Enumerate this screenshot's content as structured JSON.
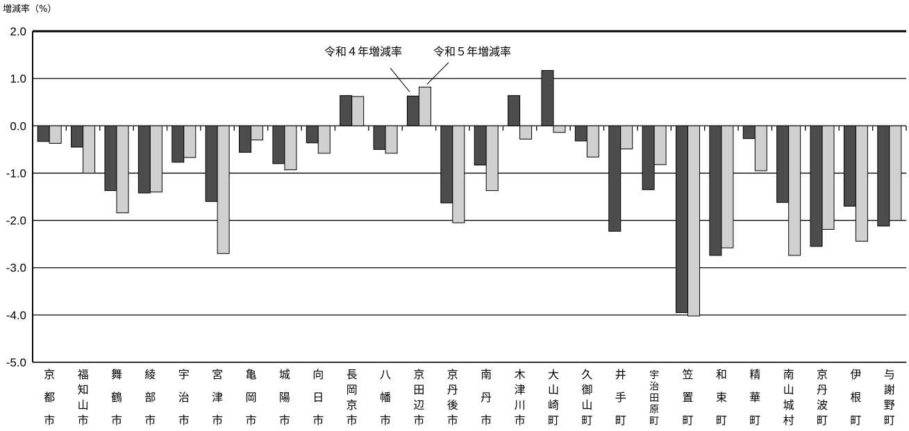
{
  "chart_data": {
    "type": "bar",
    "ylabel": "増減率（%）",
    "ylim": [
      -5.0,
      2.0
    ],
    "yticks": [
      "2.0",
      "1.0",
      "0.0",
      "-1.0",
      "-2.0",
      "-3.0",
      "-4.0",
      "-5.0"
    ],
    "grid": true,
    "categories": [
      [
        "京",
        "都",
        "市"
      ],
      [
        "福",
        "知",
        "山",
        "市"
      ],
      [
        "舞",
        "鶴",
        "市"
      ],
      [
        "綾",
        "部",
        "市"
      ],
      [
        "宇",
        "治",
        "市"
      ],
      [
        "宮",
        "津",
        "市"
      ],
      [
        "亀",
        "岡",
        "市"
      ],
      [
        "城",
        "陽",
        "市"
      ],
      [
        "向",
        "日",
        "市"
      ],
      [
        "長",
        "岡",
        "京",
        "市"
      ],
      [
        "八",
        "幡",
        "市"
      ],
      [
        "京",
        "田",
        "辺",
        "市"
      ],
      [
        "京",
        "丹",
        "後",
        "市"
      ],
      [
        "南",
        "丹",
        "市"
      ],
      [
        "木",
        "津",
        "川",
        "市"
      ],
      [
        "大",
        "山",
        "崎",
        "町"
      ],
      [
        "久",
        "御",
        "山",
        "町"
      ],
      [
        "井",
        "手",
        "町"
      ],
      [
        "宇",
        "治",
        "田",
        "原",
        "町"
      ],
      [
        "笠",
        "置",
        "町"
      ],
      [
        "和",
        "束",
        "町"
      ],
      [
        "精",
        "華",
        "町"
      ],
      [
        "南",
        "山",
        "城",
        "村"
      ],
      [
        "京",
        "丹",
        "波",
        "町"
      ],
      [
        "伊",
        "根",
        "町"
      ],
      [
        "与",
        "謝",
        "野",
        "町"
      ]
    ],
    "series": [
      {
        "name": "令和４年増減率",
        "color": "#4d4d4d",
        "values": [
          -0.33,
          -0.45,
          -1.37,
          -1.42,
          -0.77,
          -1.6,
          -0.56,
          -0.8,
          -0.36,
          0.64,
          -0.5,
          0.63,
          -1.63,
          -0.83,
          0.64,
          1.17,
          -0.32,
          -2.23,
          -1.35,
          -3.95,
          -2.74,
          -0.27,
          -1.62,
          -2.55,
          -1.7,
          -2.12
        ]
      },
      {
        "name": "令和５年増減率",
        "color": "#d0d0d0",
        "values": [
          -0.37,
          -1.0,
          -1.84,
          -1.4,
          -0.67,
          -2.7,
          -0.3,
          -0.93,
          -0.58,
          0.62,
          -0.58,
          0.82,
          -2.05,
          -1.37,
          -0.28,
          -0.14,
          -0.66,
          -0.49,
          -0.82,
          -4.02,
          -2.58,
          -0.95,
          -2.74,
          -2.19,
          -2.44,
          -2.0
        ]
      }
    ],
    "annotations": [
      {
        "text": "令和４年増減率",
        "points_to_series": 0,
        "category_index": 11
      },
      {
        "text": "令和５年増減率",
        "points_to_series": 1,
        "category_index": 11
      }
    ]
  }
}
